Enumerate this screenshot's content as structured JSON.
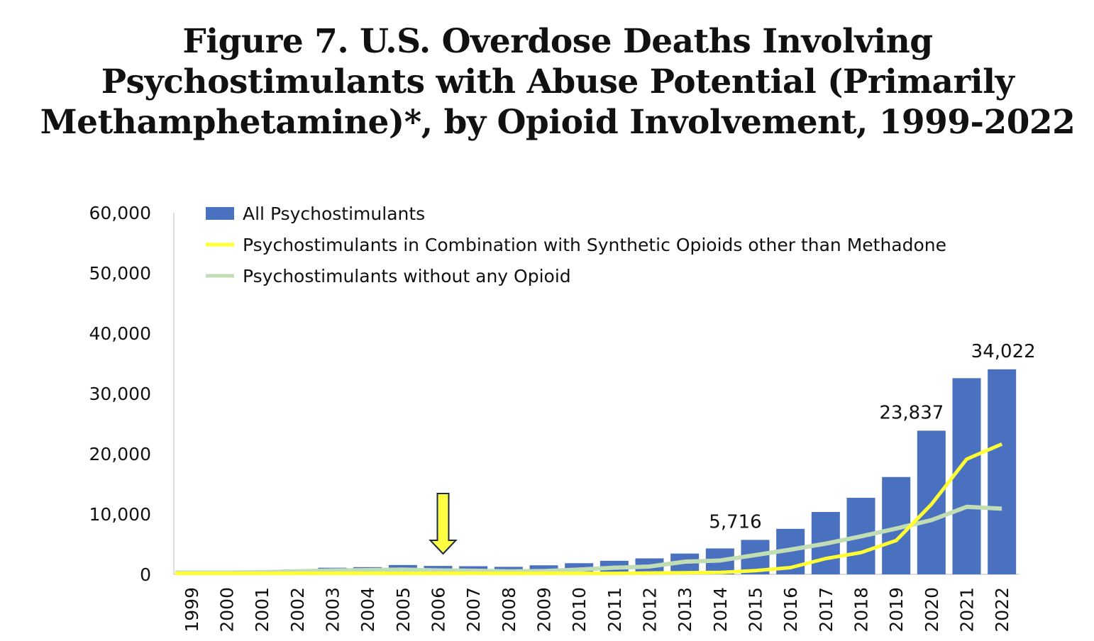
{
  "chart_data": {
    "type": "bar",
    "title_lines": [
      "Figure 7. U.S. Overdose Deaths Involving",
      "Psychostimulants with Abuse Potential (Primarily",
      "Methamphetamine)*, by Opioid Involvement, 1999-2022"
    ],
    "xlabel": "",
    "ylabel": "",
    "ylim": [
      0,
      60000
    ],
    "yticks": [
      0,
      10000,
      20000,
      30000,
      40000,
      50000,
      60000
    ],
    "ytick_labels": [
      "0",
      "10,000",
      "20,000",
      "30,000",
      "40,000",
      "50,000",
      "60,000"
    ],
    "categories": [
      "1999",
      "2000",
      "2001",
      "2002",
      "2003",
      "2004",
      "2005",
      "2006",
      "2007",
      "2008",
      "2009",
      "2010",
      "2011",
      "2012",
      "2013",
      "2014",
      "2015",
      "2016",
      "2017",
      "2018",
      "2019",
      "2020",
      "2021",
      "2022"
    ],
    "legend_position": "top-left",
    "series": [
      {
        "name": "All Psychostimulants",
        "kind": "bar",
        "color": "#4a70c0",
        "values": [
          600,
          550,
          600,
          800,
          1100,
          1200,
          1550,
          1400,
          1350,
          1250,
          1500,
          1850,
          2250,
          2650,
          3450,
          4300,
          5716,
          7550,
          10350,
          12700,
          16150,
          23837,
          32550,
          34022
        ]
      },
      {
        "name": "Psychostimulants in Combination with Synthetic Opioids other than Methadone",
        "kind": "line",
        "color": "#ffff33",
        "values": [
          50,
          50,
          50,
          50,
          50,
          50,
          50,
          50,
          50,
          50,
          50,
          50,
          50,
          100,
          150,
          200,
          500,
          1000,
          2500,
          3500,
          5500,
          11500,
          19000,
          21500
        ]
      },
      {
        "name": "Psychostimulants without any Opioid",
        "kind": "line",
        "color": "#c2dcb4",
        "values": [
          300,
          300,
          350,
          500,
          650,
          700,
          800,
          650,
          600,
          500,
          550,
          800,
          1100,
          1300,
          2100,
          2300,
          3200,
          4100,
          5100,
          6300,
          7600,
          9000,
          11200,
          10900
        ]
      }
    ],
    "data_labels": [
      {
        "category": "2015",
        "text": "5,716"
      },
      {
        "category": "2020",
        "text": "23,837"
      },
      {
        "category": "2022",
        "text": "34,022"
      }
    ],
    "annotations": [
      {
        "type": "arrow",
        "category": "2006",
        "color": "#ffff44"
      }
    ]
  }
}
